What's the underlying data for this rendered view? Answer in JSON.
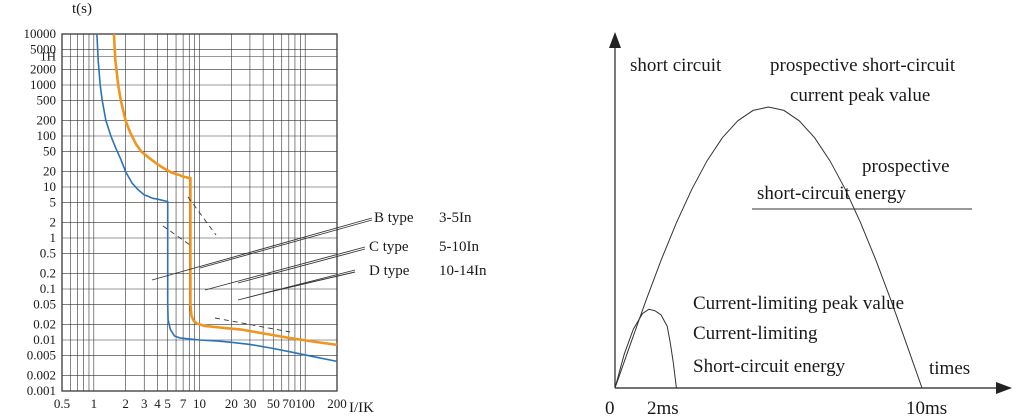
{
  "chart_data": [
    {
      "type": "line",
      "title": "",
      "xlabel": "I/IK",
      "ylabel": "t(s)",
      "x_scale": "log",
      "y_scale": "log",
      "xlim": [
        0.5,
        200
      ],
      "ylim": [
        0.001,
        10000
      ],
      "x_tick_labels": [
        "0.5",
        "1",
        "2",
        "3",
        "4",
        "5",
        "7",
        "10",
        "20",
        "30",
        "50",
        "70",
        "100",
        "200"
      ],
      "x_tick_values": [
        0.5,
        1,
        2,
        3,
        4,
        5,
        7,
        10,
        20,
        30,
        50,
        70,
        100,
        200
      ],
      "y_tick_labels": [
        "10000",
        "5000",
        "1H",
        "2000",
        "1000",
        "500",
        "200",
        "100",
        "50",
        "20",
        "10",
        "5",
        "2",
        "1",
        "0.5",
        "0.2",
        "0.1",
        "0.05",
        "0.02",
        "0.01",
        "0.005",
        "0.002",
        "0.001"
      ],
      "y_tick_values": [
        10000,
        5000,
        3600,
        2000,
        1000,
        500,
        200,
        100,
        50,
        20,
        10,
        5,
        2,
        1,
        0.5,
        0.2,
        0.1,
        0.05,
        0.02,
        0.01,
        0.005,
        0.002,
        0.001
      ],
      "grid": true,
      "series": [
        {
          "color": "#2a73b8",
          "x": [
            1.07,
            1.1,
            1.15,
            1.2,
            1.3,
            1.45,
            1.6,
            1.8,
            2.0,
            2.3,
            2.6,
            3.0,
            3.3,
            3.6,
            4.0,
            4.4,
            4.8,
            5.0,
            5.0,
            5.0,
            5.05,
            5.3,
            5.8,
            6.5,
            8,
            10,
            15,
            20,
            30,
            50,
            80,
            120,
            200
          ],
          "y": [
            10000,
            3000,
            1000,
            500,
            200,
            100,
            60,
            35,
            20,
            12,
            9,
            7,
            6.5,
            6,
            5.8,
            5.5,
            5.3,
            5.2,
            1,
            0.05,
            0.025,
            0.016,
            0.012,
            0.011,
            0.0105,
            0.01,
            0.0095,
            0.009,
            0.0082,
            0.0068,
            0.0056,
            0.0047,
            0.0038
          ]
        },
        {
          "color": "#f0961e",
          "x": [
            1.55,
            1.6,
            1.7,
            1.8,
            2.0,
            2.2,
            2.5,
            2.8,
            3.2,
            3.6,
            4.0,
            4.5,
            5.0,
            5.5,
            6.0,
            6.5,
            7.0,
            7.5,
            8.0,
            8.2,
            8.2,
            8.2,
            8.4,
            8.8,
            9.5,
            11,
            14,
            18,
            25,
            40,
            70,
            120,
            200
          ],
          "y": [
            10000,
            3000,
            1000,
            500,
            200,
            120,
            70,
            50,
            40,
            33,
            28,
            24,
            21,
            19,
            18,
            17,
            16,
            15.5,
            15,
            15,
            1,
            0.05,
            0.03,
            0.024,
            0.021,
            0.019,
            0.018,
            0.017,
            0.016,
            0.0135,
            0.011,
            0.0093,
            0.008
          ]
        }
      ],
      "annotations": [
        "B type",
        "3-5In",
        "C type",
        "5-10In",
        "D type",
        "10-14In"
      ]
    },
    {
      "type": "line",
      "title": "",
      "xlabel": "times",
      "ylabel": "short circuit",
      "x_tick_labels": [
        "0",
        "2ms",
        "10ms"
      ],
      "x_tick_values": [
        0,
        2,
        10
      ],
      "series": [
        {
          "x": [
            0,
            0.5,
            1,
            1.5,
            2,
            2.5,
            3,
            3.5,
            4,
            4.5,
            5,
            5.5,
            6,
            6.5,
            7,
            7.5,
            8,
            8.5,
            9,
            9.5,
            10
          ],
          "y": [
            0,
            0.156,
            0.309,
            0.454,
            0.588,
            0.707,
            0.809,
            0.891,
            0.951,
            0.988,
            1.0,
            0.988,
            0.951,
            0.891,
            0.809,
            0.707,
            0.588,
            0.454,
            0.309,
            0.156,
            0
          ]
        },
        {
          "x": [
            0,
            0.3,
            0.6,
            0.9,
            1.1,
            1.3,
            1.5,
            1.7,
            1.8,
            1.9,
            2.0
          ],
          "y": [
            0,
            0.12,
            0.21,
            0.265,
            0.28,
            0.275,
            0.26,
            0.22,
            0.16,
            0.09,
            0
          ]
        }
      ],
      "annotations": [
        "prospective short-circuit",
        "current peak value",
        "prospective",
        "short-circuit energy",
        "Current-limiting peak value",
        "Current-limiting",
        "Short-circuit  energy"
      ]
    }
  ]
}
